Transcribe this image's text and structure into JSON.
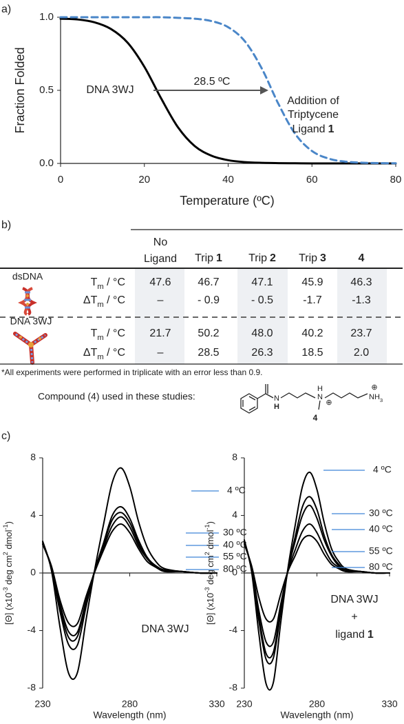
{
  "panel_labels": [
    "a)",
    "b)",
    "c)"
  ],
  "chart_data": [
    {
      "type": "line",
      "xlabel": "Temperature (ºC)",
      "ylabel": "Fraction Folded",
      "x": [
        0,
        4,
        8,
        12,
        16,
        20,
        24,
        28,
        32,
        36,
        40,
        44,
        48,
        52,
        56,
        60,
        64,
        68,
        72,
        76,
        80
      ],
      "xlim": [
        0,
        80
      ],
      "ylim": [
        0,
        1
      ],
      "xticks": [
        0,
        20,
        40,
        60,
        80
      ],
      "yticks": [
        {
          "value": 0,
          "label": "0.0"
        },
        {
          "value": 0.5,
          "label": "0.5"
        },
        {
          "value": 1,
          "label": "1.0"
        }
      ],
      "series": [
        {
          "color": "#000000",
          "linestyle": "solid",
          "values": [
            0.99,
            0.985,
            0.966,
            0.92,
            0.826,
            0.661,
            0.445,
            0.248,
            0.119,
            0.053,
            0.022,
            0.009,
            0.004,
            0.002,
            0.001,
            0,
            0,
            0,
            0,
            0,
            0
          ]
        },
        {
          "color": "#4a86c8",
          "linestyle": "dashed",
          "values": [
            1,
            1,
            1,
            1,
            1,
            1,
            1,
            0.996,
            0.99,
            0.974,
            0.932,
            0.835,
            0.651,
            0.407,
            0.202,
            0.085,
            0.033,
            0.012,
            0.005,
            0.002,
            0.001
          ]
        }
      ],
      "annotations": {
        "curve_label": "DNA 3WJ",
        "shift_label": "28.5 ºC",
        "ligand_lines": [
          "Addition of",
          "Triptycene",
          "Ligand"
        ],
        "ligand_number": "1"
      }
    },
    {
      "type": "line",
      "xlabel": "Wavelength (nm)",
      "ylabel_parts": [
        "[Θ] (x10",
        "-3",
        " deg cm",
        "2",
        " dmol",
        "-1",
        ")"
      ],
      "x": [
        230,
        235,
        240,
        245,
        250,
        255,
        260,
        265,
        270,
        275,
        280,
        285,
        290,
        295,
        300,
        310,
        320,
        330
      ],
      "xlim": [
        230,
        330
      ],
      "ylim": [
        -8,
        8
      ],
      "xticks": [
        230,
        280,
        330
      ],
      "yticks": [
        -8,
        -4,
        0,
        4,
        8
      ],
      "label_color": "#3d85d6",
      "series": [
        {
          "name": "4 ºC",
          "color": "#000000",
          "values": [
            2.2,
            0.2,
            -3.8,
            -7.0,
            -6.9,
            -3.2,
            0.3,
            3.4,
            6.3,
            7.3,
            6.0,
            3.6,
            1.8,
            0.8,
            0.3,
            0.1,
            0,
            0
          ]
        },
        {
          "name": "30 ºC",
          "color": "#000000",
          "values": [
            2.2,
            0.3,
            -2.7,
            -5.0,
            -5.0,
            -2.3,
            0.2,
            2.1,
            4.0,
            4.6,
            3.8,
            2.3,
            1.1,
            0.5,
            0.2,
            0.1,
            0,
            0
          ]
        },
        {
          "name": "40 ºC",
          "color": "#000000",
          "values": [
            2.1,
            0.4,
            -2.4,
            -4.5,
            -4.4,
            -2.0,
            0.2,
            2.0,
            3.7,
            4.2,
            3.5,
            2.1,
            1.0,
            0.5,
            0.2,
            0.1,
            0,
            0
          ]
        },
        {
          "name": "55 ºC",
          "color": "#000000",
          "values": [
            2.0,
            0.4,
            -2.2,
            -4.1,
            -4.1,
            -1.9,
            0.2,
            1.8,
            3.3,
            3.9,
            3.2,
            1.9,
            1.0,
            0.4,
            0.2,
            0.1,
            0,
            0
          ]
        },
        {
          "name": "80 ºC",
          "color": "#000000",
          "values": [
            2.0,
            0.5,
            -1.9,
            -3.5,
            -3.5,
            -1.6,
            0.1,
            1.6,
            2.9,
            3.4,
            2.8,
            1.7,
            0.8,
            0.4,
            0.1,
            0.1,
            0,
            0
          ]
        }
      ],
      "inset": [
        "DNA 3WJ"
      ]
    },
    {
      "type": "line",
      "xlabel": "Wavelength (nm)",
      "ylabel_parts": [
        "[Θ] (x10",
        "-3",
        " deg cm",
        "2",
        " dmol",
        "-1",
        ")"
      ],
      "x": [
        230,
        235,
        240,
        245,
        250,
        255,
        260,
        265,
        270,
        275,
        280,
        285,
        290,
        295,
        300,
        310,
        320,
        330
      ],
      "xlim": [
        230,
        330
      ],
      "ylim": [
        -8,
        8
      ],
      "xticks": [
        230,
        280,
        330
      ],
      "yticks": [
        -8,
        -4,
        0,
        4,
        8
      ],
      "label_color": "#3d85d6",
      "series": [
        {
          "name": "4 ºC",
          "color": "#000000",
          "values": [
            2.3,
            0.1,
            -4.2,
            -7.7,
            -7.6,
            -3.5,
            0.3,
            3.3,
            6.0,
            7.0,
            5.8,
            3.5,
            1.7,
            0.8,
            0.3,
            0.1,
            0,
            0
          ]
        },
        {
          "name": "30 ºC",
          "color": "#000000",
          "values": [
            2.2,
            0.2,
            -3.3,
            -6.0,
            -5.9,
            -2.8,
            0.2,
            2.5,
            4.6,
            5.3,
            4.4,
            2.6,
            1.3,
            0.6,
            0.2,
            0.1,
            0,
            0
          ]
        },
        {
          "name": "40 ºC",
          "color": "#000000",
          "values": [
            2.2,
            0.3,
            -3.0,
            -5.6,
            -5.5,
            -2.6,
            0.2,
            2.2,
            4.0,
            4.7,
            3.8,
            2.3,
            1.2,
            0.5,
            0.2,
            0.1,
            0,
            0
          ]
        },
        {
          "name": "55 ºC",
          "color": "#000000",
          "values": [
            2.1,
            0.4,
            -2.6,
            -4.8,
            -4.8,
            -2.2,
            0.1,
            1.6,
            2.9,
            3.4,
            2.8,
            1.7,
            0.8,
            0.4,
            0.1,
            0.1,
            0,
            0
          ]
        },
        {
          "name": "80 ºC",
          "color": "#000000",
          "values": [
            2.0,
            0.5,
            -1.7,
            -3.2,
            -3.2,
            -1.5,
            0.1,
            1.2,
            2.3,
            2.6,
            2.2,
            1.3,
            0.6,
            0.3,
            0.1,
            0.1,
            0,
            0
          ]
        }
      ],
      "inset": [
        "DNA 3WJ",
        "+",
        "ligand"
      ],
      "inset_number": "1"
    }
  ],
  "table": {
    "columns": [
      {
        "lines": [
          "No",
          "Ligand"
        ]
      },
      {
        "text": "Trip",
        "bold": "1"
      },
      {
        "text": "Trip",
        "bold": "2"
      },
      {
        "text": "Trip",
        "bold": "3"
      },
      {
        "bold": "4"
      }
    ],
    "groups": [
      {
        "name": "dsDNA",
        "rows": [
          {
            "label": [
              "T",
              "m",
              " / °C"
            ],
            "cells": [
              "47.6",
              "46.7",
              "47.1",
              "45.9",
              "46.3"
            ]
          },
          {
            "label": [
              "ΔT",
              "m",
              " / °C"
            ],
            "cells": [
              "–",
              "- 0.9",
              "- 0.5",
              "-1.7",
              "-1.3"
            ]
          }
        ]
      },
      {
        "name": "DNA 3WJ",
        "rows": [
          {
            "label": [
              "T",
              "m",
              " / °C"
            ],
            "cells": [
              "21.7",
              "50.2",
              "48.0",
              "40.2",
              "23.7"
            ]
          },
          {
            "label": [
              "ΔT",
              "m",
              " / °C"
            ],
            "cells": [
              "–",
              "28.5",
              "26.3",
              "18.5",
              "2.0"
            ]
          }
        ]
      }
    ]
  },
  "footnote": "*All experiments were performed in triplicate with an error less than 0.9.",
  "compound": {
    "caption": "Compound (4) used in these studies:",
    "amide": [
      "N",
      "H"
    ],
    "amine": [
      "N",
      "H",
      "⊕"
    ],
    "terminal": [
      "NH",
      "3",
      "⊕"
    ],
    "number": "4"
  }
}
